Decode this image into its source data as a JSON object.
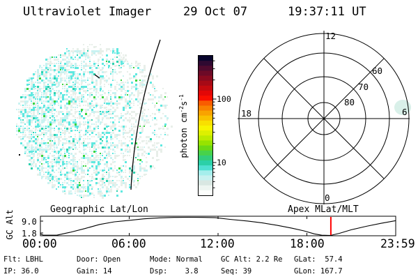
{
  "header": {
    "title": "Ultraviolet Imager",
    "date": "29 Oct 07",
    "time": "19:37:11 UT"
  },
  "uv_image": {
    "speckle_palette": {
      "pale_gray": "#e8efe9",
      "pale_cyan": "#c9f2f1",
      "cyan": "#5fe8e0",
      "teal": "#2cd2ae",
      "green": "#3bd43e"
    },
    "terminator_line_color": "#000000"
  },
  "colorbar": {
    "unit_parts": {
      "p1": "photon cm",
      "sup1": "-2",
      "p2": "s",
      "sup2": "-1"
    },
    "scale": "log",
    "major_ticks": [
      {
        "value": 100,
        "label": "100"
      },
      {
        "value": 10,
        "label": "10"
      }
    ],
    "minor_tick_values": [
      4,
      5,
      6,
      7,
      8,
      9,
      20,
      30,
      40,
      50,
      60,
      70,
      80,
      90,
      200,
      300,
      400
    ],
    "palette_top_to_bottom": [
      "#08052d",
      "#2f0931",
      "#4f0a2e",
      "#6d0a27",
      "#8a0a1f",
      "#a70a16",
      "#c50a0e",
      "#e30707",
      "#fb0f00",
      "#f95c00",
      "#f98200",
      "#f9a300",
      "#f9c200",
      "#f9e000",
      "#f7f500",
      "#ddf000",
      "#bceb00",
      "#97e300",
      "#6cd914",
      "#47d24a",
      "#32cd7c",
      "#2bd0a8",
      "#4fe0d2",
      "#a5eeec",
      "#c8f1f0",
      "#d9e7e2",
      "#eef5f1",
      "#fcfefc"
    ]
  },
  "polar_plot": {
    "mlt_labels": [
      "12",
      "18",
      "6",
      "0"
    ],
    "mlat_labels": [
      "60",
      "70",
      "80"
    ],
    "emission_patch_color": "#d9f0e9"
  },
  "timeline": {
    "left_title": "Geographic Lat/Lon",
    "right_title": "Apex MLat/MLT",
    "y_axis_label": "GC Alt",
    "y_ticks": [
      "9.0",
      "1.8"
    ],
    "x_ticks": [
      "00:00",
      "06:00",
      "12:00",
      "18:00",
      "23:59"
    ],
    "marker": {
      "color": "#ff0000",
      "time_hours": 19.62
    },
    "curve": {
      "hours": [
        0,
        0.2,
        1.1,
        2,
        3,
        4,
        5,
        6,
        7,
        8,
        9,
        10,
        11,
        11.8,
        12.8,
        14,
        15,
        16,
        17,
        17.8,
        18.5,
        19.0,
        19.6,
        20.2,
        21,
        22,
        23,
        23.98
      ],
      "alt_norm": [
        0.1,
        0.03,
        0.03,
        0.18,
        0.38,
        0.6,
        0.74,
        0.82,
        0.9,
        0.95,
        0.975,
        0.98,
        0.975,
        0.96,
        0.87,
        0.78,
        0.68,
        0.55,
        0.4,
        0.26,
        0.1,
        0.03,
        0.02,
        0.13,
        0.32,
        0.5,
        0.66,
        0.8
      ]
    }
  },
  "status": {
    "rows": [
      [
        "Flt: LBHL",
        "Door: Open",
        "Mode: Normal",
        "GC Alt: 2.2 Re",
        "GLat:  57.4"
      ],
      [
        "IP: 36.0",
        "Gain: 14",
        "Dsp:    3.8",
        "Seq: 39",
        "GLon: 167.7"
      ]
    ]
  }
}
